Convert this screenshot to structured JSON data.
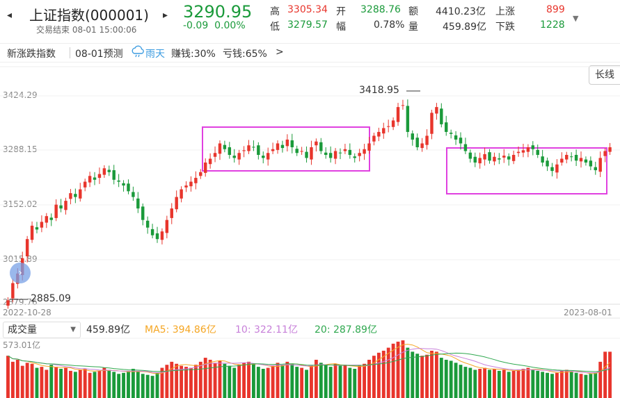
{
  "header": {
    "prev_icon": "chevron-left-icon",
    "next_icon": "chevron-right-icon",
    "title": "上证指数(000001)",
    "status": "交易结束 08-01 15:00:06",
    "price": "3290.95",
    "change": "-0.09",
    "change_pct": "0.00%",
    "high_label": "高",
    "high": "3305.34",
    "open_label": "开",
    "open": "3288.76",
    "amount_label": "额",
    "amount": "4410.23亿",
    "up_label": "上涨",
    "up": "899",
    "low_label": "低",
    "low": "3279.57",
    "amp_label": "幅",
    "amplitude": "0.78%",
    "volume_label": "量",
    "volume": "459.89亿",
    "down_label": "下跌",
    "down": "1228",
    "dropdown_icon": "caret-down-icon"
  },
  "forecast_bar": {
    "index_label": "新涨跌指数",
    "forecast_label": "08-01预测",
    "weather": "雨天",
    "earn": "赚钱:30%",
    "lose": "亏钱:65%",
    "more": ">"
  },
  "chart_toolbar": {
    "period_button": "长线"
  },
  "price_chart": {
    "y_ticks": [
      "3424.29",
      "3288.15",
      "3152.02",
      "3015.89",
      "2879.76"
    ],
    "start_date": "2022-10-28",
    "end_date": "2023-08-01",
    "high_mark": "3418.95",
    "low_mark": "2885.09"
  },
  "volume_panel": {
    "selector": "成交量",
    "current": "459.89亿",
    "ma5": "MA5: 394.86亿",
    "ma10": "10: 322.11亿",
    "ma20": "20: 287.89亿",
    "max_label": "573.01亿"
  },
  "colors": {
    "up": "#e8352c",
    "down": "#1a9a3a",
    "box": "#e040e0",
    "ma5": "#f5a623",
    "ma10": "#c77fd9",
    "ma20": "#2fa84f"
  },
  "chart_data": {
    "type": "candlestick",
    "x_range": [
      "2022-10-28",
      "2023-08-01"
    ],
    "ylim": [
      2879.76,
      3424.29
    ],
    "y_ticks": [
      3424.29,
      3288.15,
      3152.02,
      3015.89,
      2879.76
    ],
    "annotations": [
      {
        "label": "3418.95"
      },
      {
        "label": "2885.09"
      }
    ],
    "close_series": [
      2890,
      2935,
      2960,
      3000,
      3050,
      3085,
      3075,
      3095,
      3110,
      3100,
      3140,
      3130,
      3150,
      3170,
      3160,
      3180,
      3200,
      3215,
      3205,
      3220,
      3235,
      3225,
      3205,
      3200,
      3190,
      3175,
      3160,
      3130,
      3100,
      3080,
      3060,
      3050,
      3070,
      3100,
      3130,
      3160,
      3180,
      3190,
      3200,
      3210,
      3225,
      3250,
      3260,
      3275,
      3300,
      3285,
      3270,
      3262,
      3275,
      3282,
      3295,
      3290,
      3270,
      3262,
      3275,
      3285,
      3300,
      3288,
      3310,
      3290,
      3275,
      3280,
      3262,
      3290,
      3305,
      3280,
      3270,
      3262,
      3280,
      3275,
      3285,
      3270,
      3262,
      3275,
      3285,
      3300,
      3320,
      3330,
      3340,
      3345,
      3360,
      3395,
      3400,
      3330,
      3310,
      3290,
      3300,
      3320,
      3380,
      3395,
      3350,
      3330,
      3325,
      3310,
      3300,
      3280,
      3260,
      3250,
      3262,
      3272,
      3255,
      3265,
      3258,
      3268,
      3258,
      3270,
      3278,
      3282,
      3290,
      3285,
      3270,
      3250,
      3240,
      3228,
      3245,
      3260,
      3270,
      3265,
      3255,
      3262,
      3250,
      3240,
      3230,
      3262,
      3280,
      3290
    ],
    "volume_series": [
      420,
      360,
      380,
      320,
      350,
      340,
      300,
      310,
      280,
      330,
      310,
      290,
      300,
      270,
      260,
      280,
      290,
      250,
      260,
      270,
      300,
      280,
      260,
      240,
      250,
      270,
      290,
      260,
      240,
      230,
      220,
      250,
      300,
      330,
      360,
      340,
      320,
      310,
      300,
      330,
      360,
      400,
      380,
      350,
      370,
      340,
      320,
      300,
      330,
      350,
      360,
      340,
      310,
      290,
      300,
      320,
      350,
      330,
      360,
      340,
      310,
      300,
      280,
      320,
      380,
      350,
      330,
      310,
      340,
      320,
      330,
      300,
      290,
      320,
      340,
      380,
      420,
      450,
      470,
      500,
      540,
      560,
      573,
      500,
      460,
      440,
      420,
      430,
      470,
      460,
      400,
      380,
      370,
      350,
      330,
      310,
      300,
      280,
      290,
      300,
      280,
      290,
      270,
      280,
      260,
      270,
      280,
      290,
      300,
      280,
      270,
      260,
      250,
      240,
      250,
      270,
      280,
      260,
      250,
      240,
      230,
      240,
      250,
      360,
      460,
      459.89
    ]
  }
}
